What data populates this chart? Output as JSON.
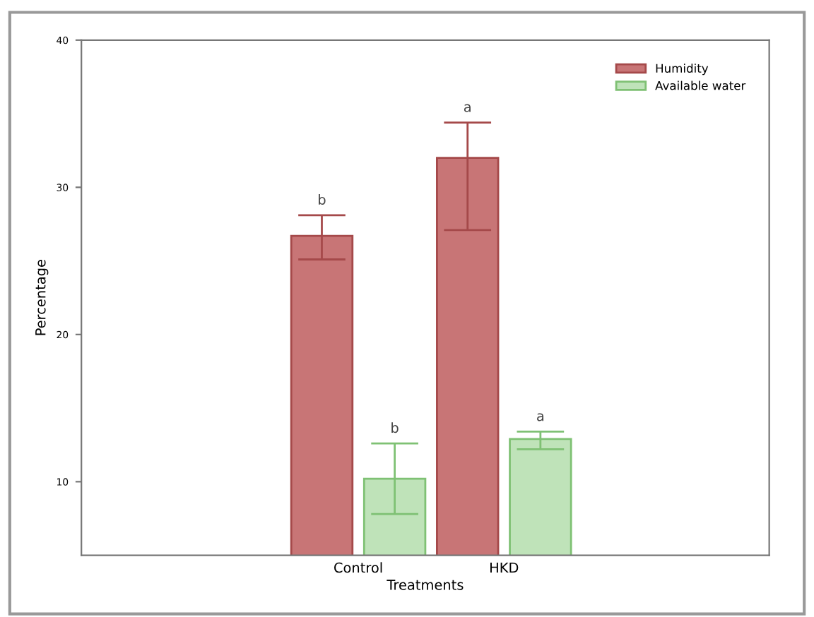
{
  "chart_data": {
    "type": "bar",
    "xlabel": "Treatments",
    "ylabel": "Percentage",
    "categories": [
      "Control",
      "HKD"
    ],
    "series": [
      {
        "name": "Humidity",
        "color": "#c87576",
        "values": [
          26.7,
          32.0
        ],
        "errors": [
          [
            25.1,
            28.1
          ],
          [
            27.1,
            34.4
          ]
        ]
      },
      {
        "name": "Available water",
        "color": "#bfe3b9",
        "values": [
          10.2,
          12.9
        ],
        "errors": [
          [
            7.8,
            12.6
          ],
          [
            12.2,
            13.4
          ]
        ]
      }
    ],
    "annotations": [
      "b",
      "a",
      "b",
      "a"
    ],
    "ylim": [
      5,
      40
    ],
    "yticks": [
      10,
      20,
      30,
      40
    ],
    "grid": false,
    "legend": "top right"
  }
}
